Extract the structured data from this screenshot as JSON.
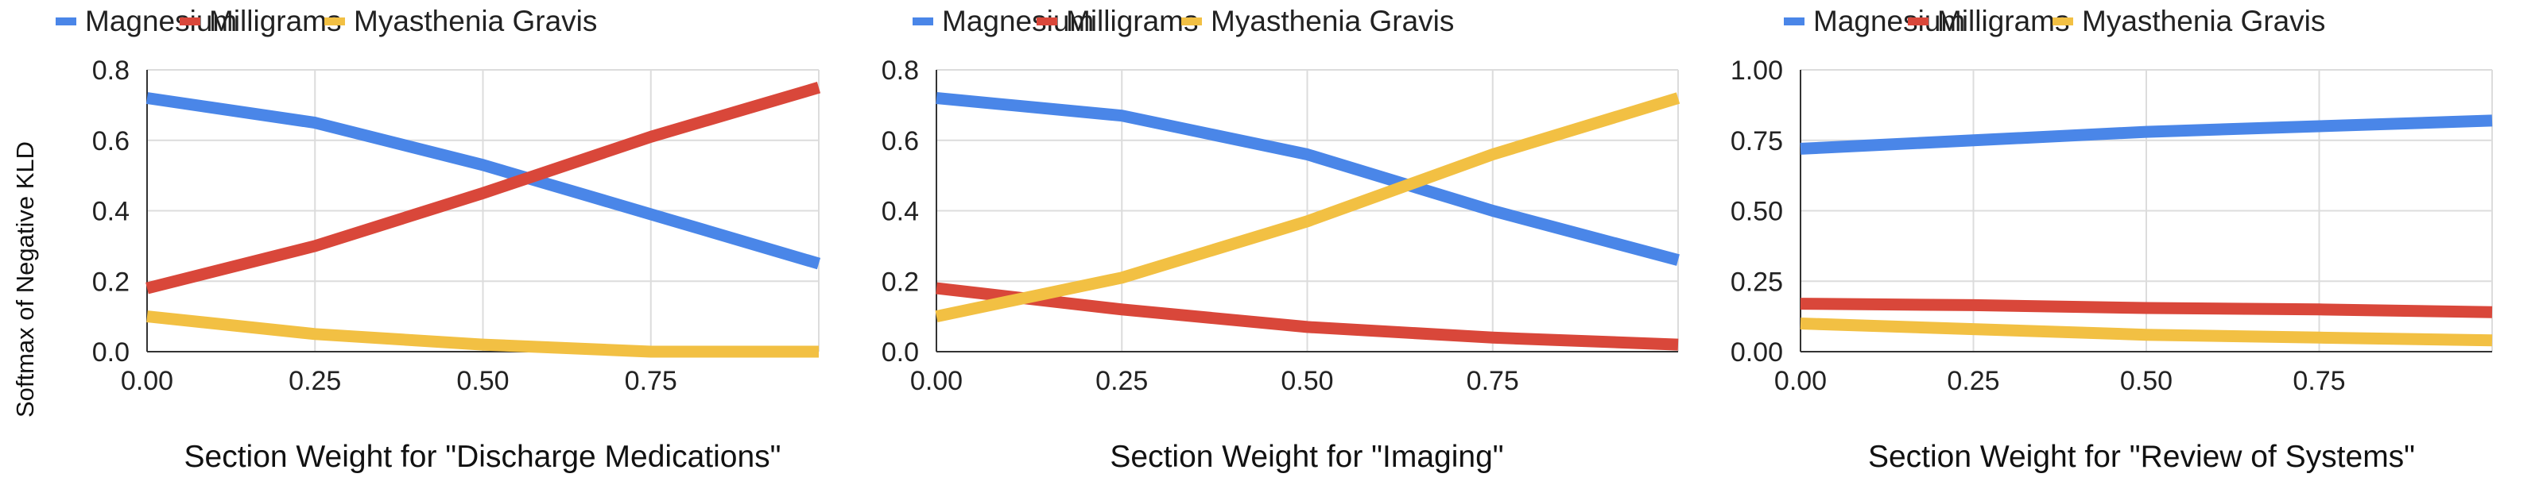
{
  "colors": {
    "magnesium": "#4A86E8",
    "milligrams": "#D9473A",
    "myasthenia_gravis": "#F2C043"
  },
  "y_axis_label": "Softmax of Negative KLD",
  "chart_data": [
    {
      "type": "line",
      "title": "",
      "xlabel": "Section Weight for \"Discharge Medications\"",
      "ylabel": "Softmax of Negative KLD",
      "xlim": [
        0,
        1
      ],
      "ylim": [
        0,
        0.8
      ],
      "x_ticks": [
        "0.00",
        "0.25",
        "0.50",
        "0.75"
      ],
      "y_ticks": [
        "0.0",
        "0.2",
        "0.4",
        "0.6",
        "0.8"
      ],
      "legend": [
        "Magnesium",
        "Milligrams",
        "Myasthenia Gravis"
      ],
      "x": [
        0,
        0.25,
        0.5,
        0.75,
        1.0
      ],
      "series": [
        {
          "name": "Magnesium",
          "color": "#4A86E8",
          "values": [
            0.72,
            0.65,
            0.53,
            0.39,
            0.25
          ]
        },
        {
          "name": "Milligrams",
          "color": "#D9473A",
          "values": [
            0.18,
            0.3,
            0.45,
            0.61,
            0.75
          ]
        },
        {
          "name": "Myasthenia Gravis",
          "color": "#F2C043",
          "values": [
            0.1,
            0.05,
            0.02,
            0.0,
            0.0
          ]
        }
      ]
    },
    {
      "type": "line",
      "title": "",
      "xlabel": "Section Weight for \"Imaging\"",
      "ylabel": "",
      "xlim": [
        0,
        1
      ],
      "ylim": [
        0,
        0.8
      ],
      "x_ticks": [
        "0.00",
        "0.25",
        "0.50",
        "0.75"
      ],
      "y_ticks": [
        "0.0",
        "0.2",
        "0.4",
        "0.6",
        "0.8"
      ],
      "legend": [
        "Magnesium",
        "Milligrams",
        "Myasthenia Gravis"
      ],
      "x": [
        0,
        0.25,
        0.5,
        0.75,
        1.0
      ],
      "series": [
        {
          "name": "Magnesium",
          "color": "#4A86E8",
          "values": [
            0.72,
            0.67,
            0.56,
            0.4,
            0.26
          ]
        },
        {
          "name": "Milligrams",
          "color": "#D9473A",
          "values": [
            0.18,
            0.12,
            0.07,
            0.04,
            0.02
          ]
        },
        {
          "name": "Myasthenia Gravis",
          "color": "#F2C043",
          "values": [
            0.1,
            0.21,
            0.37,
            0.56,
            0.72
          ]
        }
      ]
    },
    {
      "type": "line",
      "title": "",
      "xlabel": "Section Weight for \"Review of Systems\"",
      "ylabel": "",
      "xlim": [
        0,
        1
      ],
      "ylim": [
        0,
        1.0
      ],
      "x_ticks": [
        "0.00",
        "0.25",
        "0.50",
        "0.75"
      ],
      "y_ticks": [
        "0.00",
        "0.25",
        "0.50",
        "0.75",
        "1.00"
      ],
      "legend": [
        "Magnesium",
        "Milligrams",
        "Myasthenia Gravis"
      ],
      "x": [
        0,
        0.25,
        0.5,
        0.75,
        1.0
      ],
      "series": [
        {
          "name": "Magnesium",
          "color": "#4A86E8",
          "values": [
            0.72,
            0.75,
            0.78,
            0.8,
            0.82
          ]
        },
        {
          "name": "Milligrams",
          "color": "#D9473A",
          "values": [
            0.17,
            0.165,
            0.155,
            0.15,
            0.14
          ]
        },
        {
          "name": "Myasthenia Gravis",
          "color": "#F2C043",
          "values": [
            0.1,
            0.08,
            0.06,
            0.05,
            0.04
          ]
        }
      ]
    }
  ]
}
